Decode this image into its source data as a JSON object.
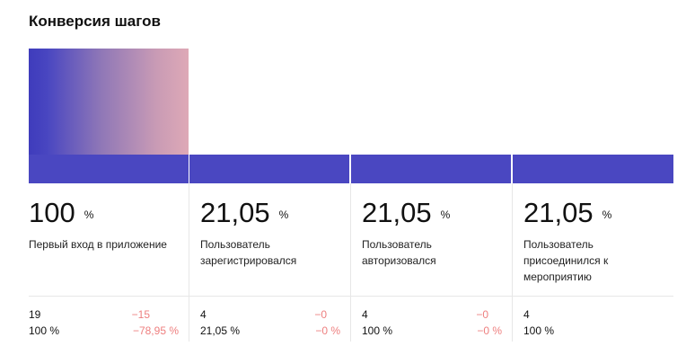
{
  "title": "Конверсия шагов",
  "colors": {
    "bar": "#4a47c1",
    "gradient_end": "#dea9b6",
    "delta": "#ee7f7f",
    "divider": "#e7e7e7"
  },
  "steps": [
    {
      "percent": "100",
      "unit": "%",
      "name": "Первый вход в приложение",
      "count": "19",
      "count_pct": "100 %",
      "delta": "−15",
      "delta_pct": "−78,95 %"
    },
    {
      "percent": "21,05",
      "unit": "%",
      "name": "Пользователь зарегистрировался",
      "count": "4",
      "count_pct": "21,05 %",
      "delta": "−0",
      "delta_pct": "−0 %"
    },
    {
      "percent": "21,05",
      "unit": "%",
      "name": "Пользователь авторизовался",
      "count": "4",
      "count_pct": "100 %",
      "delta": "−0",
      "delta_pct": "−0 %"
    },
    {
      "percent": "21,05",
      "unit": "%",
      "name": "Пользователь присоединился к мероприятию",
      "count": "4",
      "count_pct": "100 %"
    }
  ]
}
